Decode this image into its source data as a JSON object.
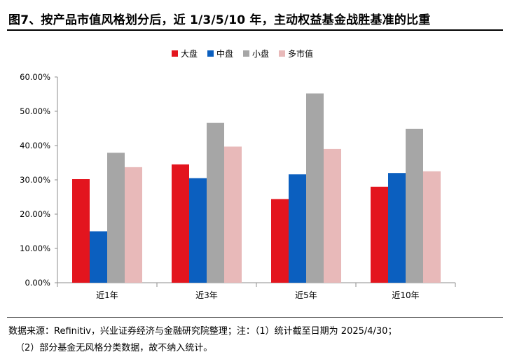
{
  "title": "图7、按产品市值风格划分后，近 1/3/5/10 年，主动权益基金战胜基准的比重",
  "legend": [
    {
      "label": "大盘",
      "color": "#E3151E"
    },
    {
      "label": "中盘",
      "color": "#0B5FBF"
    },
    {
      "label": "小盘",
      "color": "#A6A6A6"
    },
    {
      "label": "多市值",
      "color": "#E8B9B9"
    }
  ],
  "chart_data": {
    "type": "bar",
    "categories": [
      "近1年",
      "近3年",
      "近5年",
      "近10年"
    ],
    "series": [
      {
        "name": "大盘",
        "color": "#E3151E",
        "values": [
          30.2,
          34.5,
          24.4,
          28.0
        ]
      },
      {
        "name": "中盘",
        "color": "#0B5FBF",
        "values": [
          15.0,
          30.5,
          31.6,
          32.0
        ]
      },
      {
        "name": "小盘",
        "color": "#A6A6A6",
        "values": [
          37.9,
          46.6,
          55.2,
          44.9
        ]
      },
      {
        "name": "多市值",
        "color": "#E8B9B9",
        "values": [
          33.7,
          39.7,
          39.0,
          32.5
        ]
      }
    ],
    "yticks": [
      "0.00%",
      "10.00%",
      "20.00%",
      "30.00%",
      "40.00%",
      "50.00%",
      "60.00%"
    ],
    "ylim": [
      0,
      60
    ],
    "legend_position": "top-center",
    "grid": false
  },
  "notes": {
    "line1": "数据来源：Refinitiv，兴业证券经济与金融研究院整理；注：（1）统计截至日期为 2025/4/30；",
    "line2": "（2）部分基金无风格分类数据，故不纳入统计。"
  }
}
